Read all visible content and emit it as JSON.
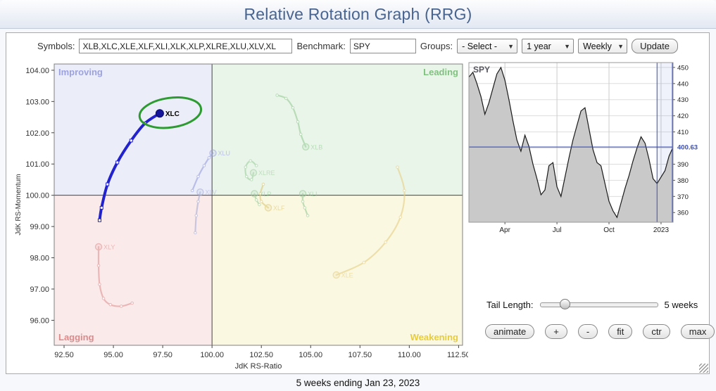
{
  "title": "Relative Rotation Graph (RRG)",
  "toolbar": {
    "symbols_label": "Symbols:",
    "symbols_value": "XLB,XLC,XLE,XLF,XLI,XLK,XLP,XLRE,XLU,XLV,XL",
    "benchmark_label": "Benchmark:",
    "benchmark_value": "SPY",
    "groups_label": "Groups:",
    "groups_select": "- Select -",
    "period_select": "1 year",
    "frequency_select": "Weekly",
    "update_label": "Update"
  },
  "chart_data": [
    {
      "type": "scatter",
      "name": "rrg",
      "xlabel": "JdK RS-Ratio",
      "ylabel": "JdK RS-Momentum",
      "x_ticks": [
        92.5,
        95,
        97.5,
        100,
        102.5,
        105,
        107.5,
        110,
        112.5
      ],
      "y_ticks": [
        96,
        97,
        98,
        99,
        100,
        101,
        102,
        103,
        104
      ],
      "x_range": [
        92.0,
        112.7
      ],
      "y_range": [
        95.2,
        104.2
      ],
      "quadrants": [
        {
          "label": "Improving",
          "color": "#8f96db",
          "bg": "#ebedf8"
        },
        {
          "label": "Leading",
          "color": "#6db96d",
          "bg": "#eaf5ea"
        },
        {
          "label": "Lagging",
          "color": "#d87a7a",
          "bg": "#faeaea"
        },
        {
          "label": "Weakening",
          "color": "#e4c51e",
          "bg": "#fbf8e2"
        }
      ],
      "highlight": {
        "symbol": "XLC",
        "color": "#2e9b32"
      },
      "series": [
        {
          "symbol": "XLU",
          "color": "#98a0e0",
          "active": false,
          "points": [
            [
              99.0,
              100.15
            ],
            [
              99.3,
              100.6
            ],
            [
              99.6,
              100.95
            ],
            [
              99.85,
              101.2
            ],
            [
              100.05,
              101.35
            ]
          ]
        },
        {
          "symbol": "XLV",
          "color": "#a8aed6",
          "active": false,
          "points": [
            [
              99.15,
              98.8
            ],
            [
              99.2,
              99.35
            ],
            [
              99.3,
              99.8
            ],
            [
              99.4,
              100.1
            ]
          ]
        },
        {
          "symbol": "XLY",
          "color": "#e09595",
          "active": false,
          "points": [
            [
              95.95,
              96.55
            ],
            [
              95.4,
              96.45
            ],
            [
              94.85,
              96.5
            ],
            [
              94.5,
              96.7
            ],
            [
              94.3,
              97.15
            ],
            [
              94.25,
              97.75
            ],
            [
              94.25,
              98.35
            ]
          ]
        },
        {
          "symbol": "XLB",
          "color": "#96cc96",
          "active": false,
          "points": [
            [
              103.3,
              103.2
            ],
            [
              103.75,
              103.1
            ],
            [
              104.1,
              102.8
            ],
            [
              104.35,
              102.35
            ],
            [
              104.5,
              101.95
            ],
            [
              104.75,
              101.55
            ]
          ]
        },
        {
          "symbol": "XLRE",
          "color": "#a0d0a0",
          "active": false,
          "points": [
            [
              102.25,
              100.95
            ],
            [
              101.95,
              101.1
            ],
            [
              101.7,
              100.9
            ],
            [
              101.75,
              100.6
            ],
            [
              102.0,
              100.5
            ],
            [
              102.1,
              100.72
            ]
          ]
        },
        {
          "symbol": "XLP",
          "color": "#9cce9c",
          "active": false,
          "points": [
            [
              102.4,
              99.7
            ],
            [
              102.25,
              99.85
            ],
            [
              102.15,
              100.05
            ]
          ]
        },
        {
          "symbol": "XLI",
          "color": "#98cc98",
          "active": false,
          "points": [
            [
              104.85,
              99.35
            ],
            [
              104.7,
              99.6
            ],
            [
              104.6,
              99.8
            ],
            [
              104.6,
              100.05
            ]
          ]
        },
        {
          "symbol": "XLF",
          "color": "#dcc878",
          "active": false,
          "points": [
            [
              102.6,
              100.35
            ],
            [
              102.45,
              100.05
            ],
            [
              102.5,
              99.8
            ],
            [
              102.85,
              99.6
            ]
          ]
        },
        {
          "symbol": "XLE",
          "color": "#e6d084",
          "active": false,
          "points": [
            [
              109.4,
              100.9
            ],
            [
              109.75,
              100.15
            ],
            [
              109.55,
              99.3
            ],
            [
              108.8,
              98.5
            ],
            [
              107.7,
              97.85
            ],
            [
              106.3,
              97.45
            ]
          ]
        },
        {
          "symbol": "XLC",
          "color": "#2323cd",
          "head_color": "#15159a",
          "active": true,
          "points": [
            [
              94.3,
              99.2
            ],
            [
              94.4,
              99.6
            ],
            [
              94.7,
              100.35
            ],
            [
              95.2,
              101.05
            ],
            [
              95.9,
              101.75
            ],
            [
              96.6,
              102.3
            ],
            [
              97.35,
              102.62
            ]
          ]
        }
      ]
    },
    {
      "type": "area",
      "name": "spy",
      "title": "SPY",
      "last_price": 400.63,
      "y_ticks": [
        450,
        440,
        430,
        420,
        410,
        390,
        380,
        370,
        360
      ],
      "y_range": [
        354,
        453
      ],
      "x_tick_labels": [
        {
          "label": "Apr",
          "i": 9
        },
        {
          "label": "Jul",
          "i": 22
        },
        {
          "label": "Oct",
          "i": 35
        },
        {
          "label": "2023",
          "i": 48
        }
      ],
      "window_start_i": 47,
      "values": [
        444,
        447,
        440,
        432,
        421,
        428,
        437,
        446,
        450,
        442,
        430,
        417,
        405,
        398,
        408,
        401,
        390,
        381,
        371,
        374,
        389,
        391,
        376,
        370,
        382,
        394,
        405,
        414,
        423,
        425,
        412,
        399,
        391,
        389,
        378,
        367,
        361,
        357,
        366,
        375,
        383,
        392,
        400,
        407,
        403,
        393,
        381,
        378,
        382,
        386,
        395,
        400.63
      ]
    }
  ],
  "controls": {
    "tail_length_label": "Tail Length:",
    "tail_length_value": "5 weeks",
    "buttons": [
      "animate",
      "+",
      "-",
      "fit",
      "ctr",
      "max"
    ]
  },
  "footer": "5 weeks ending Jan 23, 2023"
}
